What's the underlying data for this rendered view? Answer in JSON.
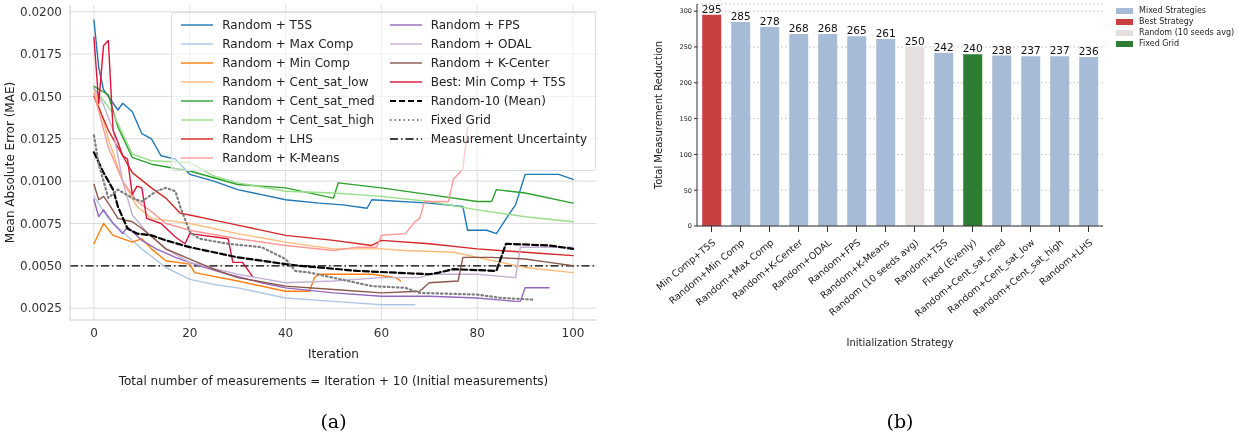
{
  "chart_data": [
    {
      "type": "line",
      "xlabel": "Iteration",
      "ylabel": "Mean Absolute Error (MAE)",
      "annotations": [
        "Total number of measurements = Iteration + 10 (Initial measurements)",
        "(a)"
      ],
      "xlim": [
        -5,
        105
      ],
      "xticks": [
        0,
        20,
        40,
        60,
        80,
        100
      ],
      "ylim": [
        0.0018,
        0.0204
      ],
      "yticks": [
        {
          "value": 0.0025,
          "label": "0.0025"
        },
        {
          "value": 0.005,
          "label": "0.0050"
        },
        {
          "value": 0.0075,
          "label": "0.0075"
        },
        {
          "value": 0.01,
          "label": "0.0100"
        },
        {
          "value": 0.0125,
          "label": "0.0125"
        },
        {
          "value": 0.015,
          "label": "0.0150"
        },
        {
          "value": 0.0175,
          "label": "0.0175"
        },
        {
          "value": 0.02,
          "label": "0.0200"
        }
      ],
      "grid": true,
      "legend": "top right",
      "marker": "none",
      "ref_lines": [
        {
          "axis": "y",
          "value": 0.005,
          "label": "Measurement Uncertainty",
          "color": "#000000",
          "line_style": "dashdot"
        }
      ],
      "series": [
        {
          "name": "Random + T5S",
          "color": "#1f77b4",
          "line_style": "solid",
          "x": [
            0,
            1,
            2,
            5,
            6,
            8,
            10,
            12,
            14,
            17,
            20,
            25,
            30,
            35,
            40,
            47,
            52,
            57,
            58,
            70,
            77,
            78,
            82,
            84,
            87,
            88,
            90,
            97,
            100
          ],
          "values": [
            0.0195,
            0.0167,
            0.0154,
            0.0142,
            0.0146,
            0.0141,
            0.0128,
            0.0125,
            0.0115,
            0.0113,
            0.0104,
            0.01,
            0.0095,
            0.0092,
            0.0089,
            0.0087,
            0.0086,
            0.0084,
            0.0089,
            0.0087,
            0.0085,
            0.0071,
            0.0071,
            0.0069,
            0.0082,
            0.0086,
            0.0104,
            0.0104,
            0.0101
          ]
        },
        {
          "name": "Random + Max Comp",
          "color": "#aec7e8",
          "line_style": "solid",
          "x": [
            0,
            3,
            6,
            10,
            15,
            20,
            25,
            30,
            40,
            50,
            60,
            67
          ],
          "values": [
            0.0091,
            0.0078,
            0.007,
            0.006,
            0.0049,
            0.0042,
            0.0039,
            0.0037,
            0.0031,
            0.0029,
            0.0027,
            0.0027
          ]
        },
        {
          "name": "Random + Min Comp",
          "color": "#ff7f0e",
          "line_style": "solid",
          "x": [
            0,
            2,
            4,
            8,
            10,
            12,
            15,
            20,
            21,
            30,
            40,
            45,
            46,
            47,
            58,
            63,
            64
          ],
          "values": [
            0.0063,
            0.0075,
            0.0068,
            0.0064,
            0.0066,
            0.006,
            0.0053,
            0.0051,
            0.0046,
            0.0041,
            0.0035,
            0.0035,
            0.0043,
            0.0045,
            0.0045,
            0.0043,
            0.0041
          ]
        },
        {
          "name": "Random + Cent_sat_low",
          "color": "#ffbb78",
          "line_style": "solid",
          "x": [
            0,
            3,
            6,
            9,
            12,
            15,
            20,
            30,
            40,
            50,
            55,
            60,
            65,
            75,
            90,
            100
          ],
          "values": [
            0.0155,
            0.0125,
            0.01,
            0.0085,
            0.0078,
            0.0077,
            0.0075,
            0.0069,
            0.0064,
            0.006,
            0.006,
            0.006,
            0.0059,
            0.0058,
            0.0049,
            0.0046
          ]
        },
        {
          "name": "Random + Cent_sat_med",
          "color": "#2ca02c",
          "line_style": "solid",
          "x": [
            0,
            3,
            5,
            8,
            12,
            20,
            25,
            30,
            40,
            50,
            51,
            60,
            70,
            80,
            83,
            84,
            90,
            100
          ],
          "values": [
            0.0156,
            0.0151,
            0.0132,
            0.0114,
            0.011,
            0.0106,
            0.0102,
            0.0098,
            0.0096,
            0.009,
            0.0099,
            0.0096,
            0.0092,
            0.0088,
            0.0088,
            0.0095,
            0.0093,
            0.0087
          ]
        },
        {
          "name": "Random + Cent_sat_high",
          "color": "#98df8a",
          "line_style": "solid",
          "x": [
            0,
            4,
            8,
            12,
            20,
            25,
            30,
            40,
            50,
            60,
            70,
            80,
            90,
            100
          ],
          "values": [
            0.0155,
            0.014,
            0.0116,
            0.0112,
            0.0111,
            0.0103,
            0.0099,
            0.0094,
            0.0093,
            0.0091,
            0.0088,
            0.0083,
            0.0079,
            0.0076
          ]
        },
        {
          "name": "Random + LHS",
          "color": "#d62728",
          "line_style": "solid",
          "x": [
            0,
            3,
            6,
            8,
            12,
            15,
            18,
            20,
            25,
            30,
            40,
            50,
            58,
            60,
            70,
            80,
            90,
            100
          ],
          "values": [
            0.015,
            0.013,
            0.0115,
            0.0105,
            0.0096,
            0.009,
            0.0081,
            0.008,
            0.0077,
            0.0074,
            0.0068,
            0.0065,
            0.0062,
            0.0065,
            0.0063,
            0.006,
            0.0058,
            0.0056
          ]
        },
        {
          "name": "Random + K-Means",
          "color": "#ff9896",
          "line_style": "solid",
          "x": [
            0,
            3,
            6,
            9,
            12,
            15,
            20,
            30,
            40,
            50,
            55,
            59,
            60,
            65,
            67,
            68,
            69,
            74,
            75,
            77,
            78
          ],
          "values": [
            0.0152,
            0.012,
            0.01,
            0.0088,
            0.0082,
            0.0075,
            0.0071,
            0.0066,
            0.0062,
            0.0059,
            0.0061,
            0.0061,
            0.0068,
            0.0069,
            0.0076,
            0.0078,
            0.0088,
            0.0088,
            0.0101,
            0.0107,
            0.0132
          ]
        },
        {
          "name": "Random + FPS",
          "color": "#9467bd",
          "line_style": "solid",
          "x": [
            0,
            1,
            2,
            4,
            6,
            7,
            10,
            13,
            17,
            22,
            28,
            35,
            40,
            50,
            60,
            70,
            80,
            88,
            89,
            90,
            95
          ],
          "values": [
            0.0089,
            0.0079,
            0.0083,
            0.0075,
            0.0069,
            0.0073,
            0.0065,
            0.006,
            0.0055,
            0.005,
            0.0045,
            0.004,
            0.0037,
            0.0034,
            0.0032,
            0.0032,
            0.0031,
            0.0029,
            0.0029,
            0.0037,
            0.0037
          ]
        },
        {
          "name": "Random + ODAL",
          "color": "#c5b0d5",
          "line_style": "solid",
          "x": [
            0,
            2,
            4,
            6,
            8,
            11,
            15,
            20,
            30,
            40,
            50,
            60,
            68,
            70,
            80,
            88,
            89,
            100
          ],
          "values": [
            0.0155,
            0.0145,
            0.013,
            0.01,
            0.008,
            0.007,
            0.006,
            0.0052,
            0.0045,
            0.004,
            0.0041,
            0.0043,
            0.0043,
            0.0045,
            0.0045,
            0.0043,
            0.0061,
            0.0061
          ]
        },
        {
          "name": "Random + K-Center",
          "color": "#8c564b",
          "line_style": "solid",
          "x": [
            0,
            1,
            2,
            3,
            5,
            8,
            10,
            13,
            15,
            20,
            25,
            30,
            40,
            50,
            60,
            68,
            70,
            76,
            77,
            83,
            90,
            95,
            100
          ],
          "values": [
            0.0098,
            0.0089,
            0.0091,
            0.0087,
            0.0078,
            0.0076,
            0.0072,
            0.0065,
            0.006,
            0.0054,
            0.0048,
            0.0043,
            0.0038,
            0.0036,
            0.0034,
            0.0035,
            0.004,
            0.0041,
            0.0055,
            0.0055,
            0.0054,
            0.0052,
            0.005
          ]
        },
        {
          "name": "Best: Min Comp + T5S",
          "color": "#dc143c",
          "line_style": "solid",
          "x": [
            0,
            1,
            2,
            3,
            4,
            5,
            6,
            7,
            8,
            9,
            10,
            11,
            14,
            17,
            19,
            20,
            28,
            29,
            31,
            33
          ],
          "values": [
            0.0185,
            0.0146,
            0.018,
            0.0183,
            0.013,
            0.0123,
            0.0115,
            0.0113,
            0.0092,
            0.0097,
            0.0096,
            0.0078,
            0.0075,
            0.0067,
            0.0063,
            0.0069,
            0.0066,
            0.0052,
            0.0052,
            0.0044
          ]
        },
        {
          "name": "Random-10 (Mean)",
          "color": "#000000",
          "line_style": "dashed",
          "x": [
            0,
            2,
            4,
            5,
            7,
            9,
            12,
            15,
            20,
            25,
            30,
            40,
            43,
            55,
            70,
            72,
            75,
            84,
            86,
            95,
            100
          ],
          "values": [
            0.0117,
            0.0105,
            0.0095,
            0.0085,
            0.0072,
            0.0069,
            0.0068,
            0.0065,
            0.0061,
            0.0058,
            0.0055,
            0.0051,
            0.005,
            0.0047,
            0.0045,
            0.0046,
            0.0048,
            0.0047,
            0.0063,
            0.0062,
            0.006
          ]
        },
        {
          "name": "Fixed Grid",
          "color": "#7f7f7f",
          "line_style": "dotted",
          "x": [
            0,
            1,
            3,
            5,
            8,
            10,
            13,
            15,
            17,
            18,
            20,
            22,
            28,
            35,
            40,
            42,
            45,
            58,
            65,
            68,
            80,
            85,
            92
          ],
          "values": [
            0.0127,
            0.011,
            0.009,
            0.0095,
            0.009,
            0.0088,
            0.0094,
            0.0096,
            0.0094,
            0.0085,
            0.007,
            0.0066,
            0.0063,
            0.0061,
            0.0054,
            0.0047,
            0.0046,
            0.0038,
            0.0037,
            0.0034,
            0.0033,
            0.0031,
            0.003
          ]
        }
      ]
    },
    {
      "type": "bar",
      "xlabel": "Initialization Strategy",
      "ylabel": "Total Measurement Reduction",
      "annotations": [
        "(b)"
      ],
      "categories": [
        "Min Comp+T5S",
        "Random+Min Comp",
        "Random+Max Comp",
        "Random+K-Center",
        "Random+ODAL",
        "Random+FPS",
        "Random+K-Means",
        "Random (10 seeds avg)",
        "Random+T5S",
        "Fixed (Evenly)",
        "Random+Cent_sat_med",
        "Random+Cent_sat_low",
        "Random+Cent_sat_high",
        "Random+LHS"
      ],
      "ylim": [
        0,
        310
      ],
      "yticks": [
        0,
        50,
        100,
        150,
        200,
        250,
        300
      ],
      "grid": "y",
      "legend": "right",
      "stacked": true,
      "data_labels": true,
      "series": [
        {
          "name": "Mixed Strategies",
          "color": "#a6bcd6",
          "values": [
            null,
            285,
            278,
            268,
            268,
            265,
            261,
            null,
            242,
            null,
            238,
            237,
            237,
            236
          ]
        },
        {
          "name": "Best Strategy",
          "color": "#c84040",
          "values": [
            295,
            null,
            null,
            null,
            null,
            null,
            null,
            null,
            null,
            null,
            null,
            null,
            null,
            null
          ]
        },
        {
          "name": "Random (10 seeds avg)",
          "color": "#e6dfdf",
          "values": [
            null,
            null,
            null,
            null,
            null,
            null,
            null,
            250,
            null,
            null,
            null,
            null,
            null,
            null
          ]
        },
        {
          "name": "Fixed Grid",
          "color": "#2e7d32",
          "values": [
            null,
            null,
            null,
            null,
            null,
            null,
            null,
            null,
            null,
            240,
            null,
            null,
            null,
            null
          ]
        }
      ]
    }
  ]
}
